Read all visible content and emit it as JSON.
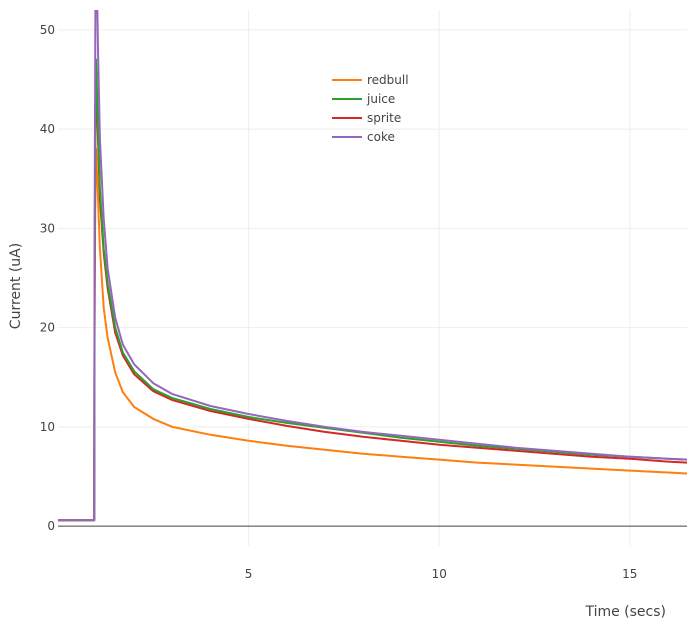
{
  "chart_data": {
    "type": "line",
    "title": "",
    "xlabel": "Time (secs)",
    "ylabel": "Current (uA)",
    "xlim": [
      0,
      16.5
    ],
    "ylim": [
      -2,
      52
    ],
    "xticks": [
      5,
      10,
      15
    ],
    "yticks": [
      0,
      10,
      20,
      30,
      40,
      50
    ],
    "grid": true,
    "legend_position": "top-center",
    "baseline": {
      "y": 0,
      "x_range": [
        0,
        16.5
      ],
      "color": "#444444"
    },
    "series": [
      {
        "name": "redbull",
        "color": "#ff7f0e",
        "x": [
          0,
          0.95,
          0.96,
          0.98,
          1.0,
          1.05,
          1.1,
          1.2,
          1.3,
          1.5,
          1.7,
          2.0,
          2.5,
          3.0,
          4.0,
          5.0,
          6.0,
          7.0,
          8.0,
          9.0,
          10.0,
          11.0,
          12.0,
          13.0,
          14.0,
          15.0,
          16.0,
          16.5
        ],
        "y": [
          0.6,
          0.6,
          20,
          35,
          38,
          33,
          28,
          22,
          19,
          15.5,
          13.5,
          12,
          10.8,
          10,
          9.2,
          8.6,
          8.1,
          7.7,
          7.3,
          7.0,
          6.7,
          6.4,
          6.2,
          6.0,
          5.8,
          5.6,
          5.4,
          5.3
        ]
      },
      {
        "name": "juice",
        "color": "#2ca02c",
        "x": [
          0,
          0.95,
          0.96,
          0.98,
          1.0,
          1.05,
          1.1,
          1.2,
          1.3,
          1.5,
          1.7,
          2.0,
          2.5,
          3.0,
          4.0,
          5.0,
          6.0,
          7.0,
          8.0,
          9.0,
          10.0,
          11.0,
          12.0,
          13.0,
          14.0,
          15.0,
          16.0,
          16.5
        ],
        "y": [
          0.6,
          0.6,
          25,
          42,
          47,
          40,
          34,
          28,
          24.5,
          20,
          17.5,
          15.6,
          13.8,
          12.9,
          11.8,
          11,
          10.4,
          9.9,
          9.4,
          8.9,
          8.5,
          8.1,
          7.8,
          7.5,
          7.2,
          7.0,
          6.8,
          6.7
        ]
      },
      {
        "name": "sprite",
        "color": "#d62728",
        "x": [
          0,
          0.95,
          0.96,
          0.98,
          1.0,
          1.05,
          1.1,
          1.2,
          1.3,
          1.5,
          1.7,
          2.0,
          2.5,
          3.0,
          4.0,
          5.0,
          6.0,
          7.0,
          8.0,
          9.0,
          10.0,
          11.0,
          12.0,
          13.0,
          14.0,
          15.0,
          16.0,
          16.5
        ],
        "y": [
          0.6,
          0.6,
          24,
          40,
          45,
          39,
          33,
          27.5,
          24,
          19.5,
          17.2,
          15.3,
          13.6,
          12.7,
          11.6,
          10.8,
          10.1,
          9.5,
          9.0,
          8.6,
          8.2,
          7.9,
          7.6,
          7.3,
          7.0,
          6.8,
          6.5,
          6.4
        ]
      },
      {
        "name": "coke",
        "color": "#9467bd",
        "x": [
          0,
          0.95,
          0.96,
          0.98,
          1.0,
          1.05,
          1.1,
          1.2,
          1.3,
          1.5,
          1.7,
          2.0,
          2.5,
          3.0,
          4.0,
          5.0,
          6.0,
          7.0,
          8.0,
          9.0,
          10.0,
          11.0,
          12.0,
          13.0,
          14.0,
          15.0,
          16.0,
          16.5
        ],
        "y": [
          0.6,
          0.6,
          30,
          52,
          60,
          48,
          39,
          31,
          26,
          21,
          18.3,
          16.3,
          14.4,
          13.3,
          12.1,
          11.3,
          10.6,
          10.0,
          9.5,
          9.1,
          8.7,
          8.3,
          7.9,
          7.6,
          7.3,
          7.0,
          6.8,
          6.7
        ]
      }
    ]
  }
}
